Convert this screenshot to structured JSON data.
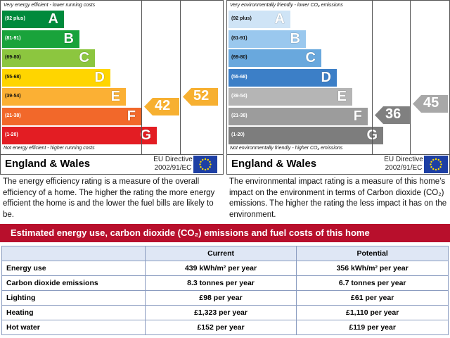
{
  "energy": {
    "top_note": "Very energy efficient - lower running costs",
    "bottom_note": "Not energy efficient - higher running costs",
    "bands": [
      {
        "range": "(92 plus)",
        "letter": "A",
        "color": "#008a3c"
      },
      {
        "range": "(81-91)",
        "letter": "B",
        "color": "#19a33b"
      },
      {
        "range": "(69-80)",
        "letter": "C",
        "color": "#8cc63f"
      },
      {
        "range": "(55-68)",
        "letter": "D",
        "color": "#ffd500"
      },
      {
        "range": "(39-54)",
        "letter": "E",
        "color": "#fbb034"
      },
      {
        "range": "(21-38)",
        "letter": "F",
        "color": "#f2682a"
      },
      {
        "range": "(1-20)",
        "letter": "G",
        "color": "#e31d23"
      }
    ],
    "current": "42",
    "potential": "52",
    "current_color": "#f7b031",
    "potential_color": "#f7b031",
    "region": "England & Wales",
    "directive_line1": "EU Directive",
    "directive_line2": "2002/91/EC",
    "description": "The energy efficiency rating is a measure of the overall efficiency of a home. The higher the rating the more energy efficient the home is and the lower the fuel bills are likely to be."
  },
  "environment": {
    "top_note": "Very environmentally friendly - lower CO₂ emissions",
    "bottom_note": "Not environmentally friendly - higher CO₂ emissions",
    "bands": [
      {
        "range": "(92 plus)",
        "letter": "A",
        "color": "#cfe4f6"
      },
      {
        "range": "(81-91)",
        "letter": "B",
        "color": "#9ac8ee"
      },
      {
        "range": "(69-80)",
        "letter": "C",
        "color": "#69a8dd"
      },
      {
        "range": "(55-68)",
        "letter": "D",
        "color": "#3c7fc7"
      },
      {
        "range": "(39-54)",
        "letter": "E",
        "color": "#b5b5b5"
      },
      {
        "range": "(21-38)",
        "letter": "F",
        "color": "#9c9c9c"
      },
      {
        "range": "(1-20)",
        "letter": "G",
        "color": "#7d7d7d"
      }
    ],
    "current": "36",
    "potential": "45",
    "current_color": "#808080",
    "potential_color": "#a8a8a8",
    "region": "England & Wales",
    "directive_line1": "EU Directive",
    "directive_line2": "2002/91/EC",
    "description": "The environmental impact rating is a measure of this home’s impact on the environment in terms of Carbon dioxide (CO₂) emissions. The higher the rating the less impact it has on the environment."
  },
  "banner": "Estimated energy use, carbon dioxide (CO₂) emissions and fuel costs of this home",
  "table": {
    "headers": [
      "",
      "Current",
      "Potential"
    ],
    "rows": [
      {
        "label": "Energy use",
        "current": "439 kWh/m² per year",
        "potential": "356 kWh/m² per year"
      },
      {
        "label": "Carbon dioxide emissions",
        "current": "8.3 tonnes per year",
        "potential": "6.7 tonnes per year"
      },
      {
        "label": "Lighting",
        "current": "£98 per year",
        "potential": "£61 per year"
      },
      {
        "label": "Heating",
        "current": "£1,323 per year",
        "potential": "£1,110 per year"
      },
      {
        "label": "Hot water",
        "current": "£152 per year",
        "potential": "£119 per year"
      }
    ]
  }
}
